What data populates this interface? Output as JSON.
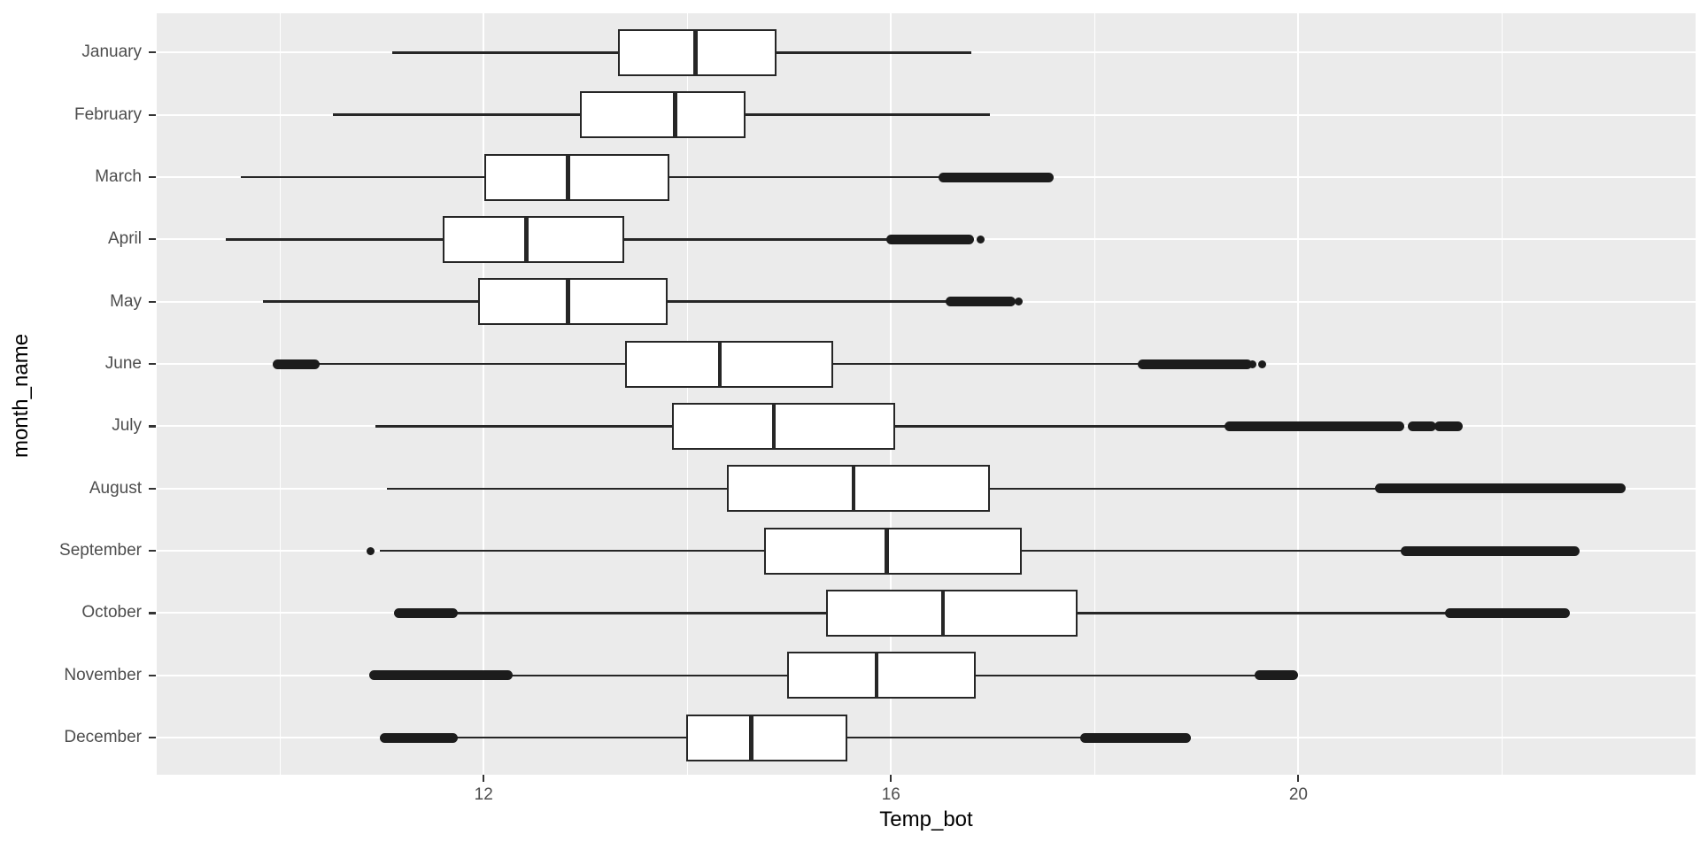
{
  "figure": {
    "background": "#FFFFFF"
  },
  "chart_data": {
    "type": "boxplot",
    "orientation": "horizontal",
    "title": "",
    "xlabel": "Temp_bot",
    "ylabel": "month_name",
    "x_ticks": [
      12,
      16,
      20
    ],
    "x_minor_ticks": [
      10,
      14,
      18,
      22
    ],
    "x_range": [
      8.79,
      23.9
    ],
    "legend": "none",
    "grid": "on",
    "panel_background": "#EBEBEB",
    "grid_color": "#FFFFFF",
    "box_fill": "#FFFFFF",
    "line_color": "#262626",
    "outlier_color": "#1C1C1C",
    "axis_text_color": "#4D4D4D",
    "axis_title_color": "#000000",
    "months": [
      {
        "name": "January",
        "whisker_low": 11.1,
        "q1": 13.32,
        "median": 14.08,
        "q3": 14.88,
        "whisker_high": 16.79,
        "outliers_low": [],
        "outliers_high": [],
        "dots_low": [],
        "dots_high": []
      },
      {
        "name": "February",
        "whisker_low": 10.52,
        "q1": 12.95,
        "median": 13.88,
        "q3": 14.57,
        "whisker_high": 16.97,
        "outliers_low": [],
        "outliers_high": [],
        "dots_low": [],
        "dots_high": []
      },
      {
        "name": "March",
        "whisker_low": 9.62,
        "q1": 12.01,
        "median": 12.83,
        "q3": 13.82,
        "whisker_high": 16.49,
        "outliers_low": [],
        "outliers_high": [
          [
            16.51,
            17.55
          ]
        ],
        "dots_low": [],
        "dots_high": []
      },
      {
        "name": "April",
        "whisker_low": 9.47,
        "q1": 11.6,
        "median": 12.42,
        "q3": 13.38,
        "whisker_high": 15.98,
        "outliers_low": [],
        "outliers_high": [
          [
            16.0,
            16.77
          ]
        ],
        "dots_low": [],
        "dots_high": [
          16.88
        ]
      },
      {
        "name": "May",
        "whisker_low": 9.83,
        "q1": 11.95,
        "median": 12.83,
        "q3": 13.81,
        "whisker_high": 16.57,
        "outliers_low": [],
        "outliers_high": [
          [
            16.58,
            17.18
          ]
        ],
        "dots_low": [],
        "dots_high": [
          17.25
        ]
      },
      {
        "name": "June",
        "whisker_low": 10.35,
        "q1": 13.39,
        "median": 14.32,
        "q3": 15.43,
        "whisker_high": 18.44,
        "outliers_low": [
          [
            9.97,
            10.35
          ]
        ],
        "outliers_high": [
          [
            18.47,
            19.5
          ]
        ],
        "dots_low": [],
        "dots_high": [
          19.55,
          19.64
        ]
      },
      {
        "name": "July",
        "whisker_low": 10.94,
        "q1": 13.85,
        "median": 14.85,
        "q3": 16.04,
        "whisker_high": 19.3,
        "outliers_low": [],
        "outliers_high": [
          [
            19.32,
            21.0
          ],
          [
            21.12,
            21.31
          ],
          [
            21.38,
            21.57
          ]
        ],
        "dots_low": [],
        "dots_high": []
      },
      {
        "name": "August",
        "whisker_low": 11.05,
        "q1": 14.39,
        "median": 15.63,
        "q3": 16.97,
        "whisker_high": 20.79,
        "outliers_low": [],
        "outliers_high": [
          [
            20.8,
            23.17
          ]
        ],
        "dots_low": [],
        "dots_high": []
      },
      {
        "name": "September",
        "whisker_low": 10.98,
        "q1": 14.75,
        "median": 15.96,
        "q3": 17.28,
        "whisker_high": 21.04,
        "outliers_low": [],
        "outliers_high": [
          [
            21.05,
            22.72
          ]
        ],
        "dots_low": [
          10.89
        ],
        "dots_high": []
      },
      {
        "name": "October",
        "whisker_low": 11.7,
        "q1": 15.36,
        "median": 16.51,
        "q3": 17.83,
        "whisker_high": 21.47,
        "outliers_low": [
          [
            11.16,
            11.7
          ]
        ],
        "outliers_high": [
          [
            21.48,
            22.62
          ]
        ],
        "dots_low": [],
        "dots_high": []
      },
      {
        "name": "November",
        "whisker_low": 12.25,
        "q1": 14.98,
        "median": 15.86,
        "q3": 16.83,
        "whisker_high": 19.59,
        "outliers_low": [
          [
            10.92,
            12.24
          ]
        ],
        "outliers_high": [
          [
            19.61,
            19.95
          ]
        ],
        "dots_low": [],
        "dots_high": []
      },
      {
        "name": "December",
        "whisker_low": 11.7,
        "q1": 13.99,
        "median": 14.63,
        "q3": 15.57,
        "whisker_high": 17.89,
        "outliers_low": [
          [
            11.02,
            11.7
          ]
        ],
        "outliers_high": [
          [
            17.9,
            18.9
          ]
        ],
        "dots_low": [],
        "dots_high": []
      }
    ]
  }
}
